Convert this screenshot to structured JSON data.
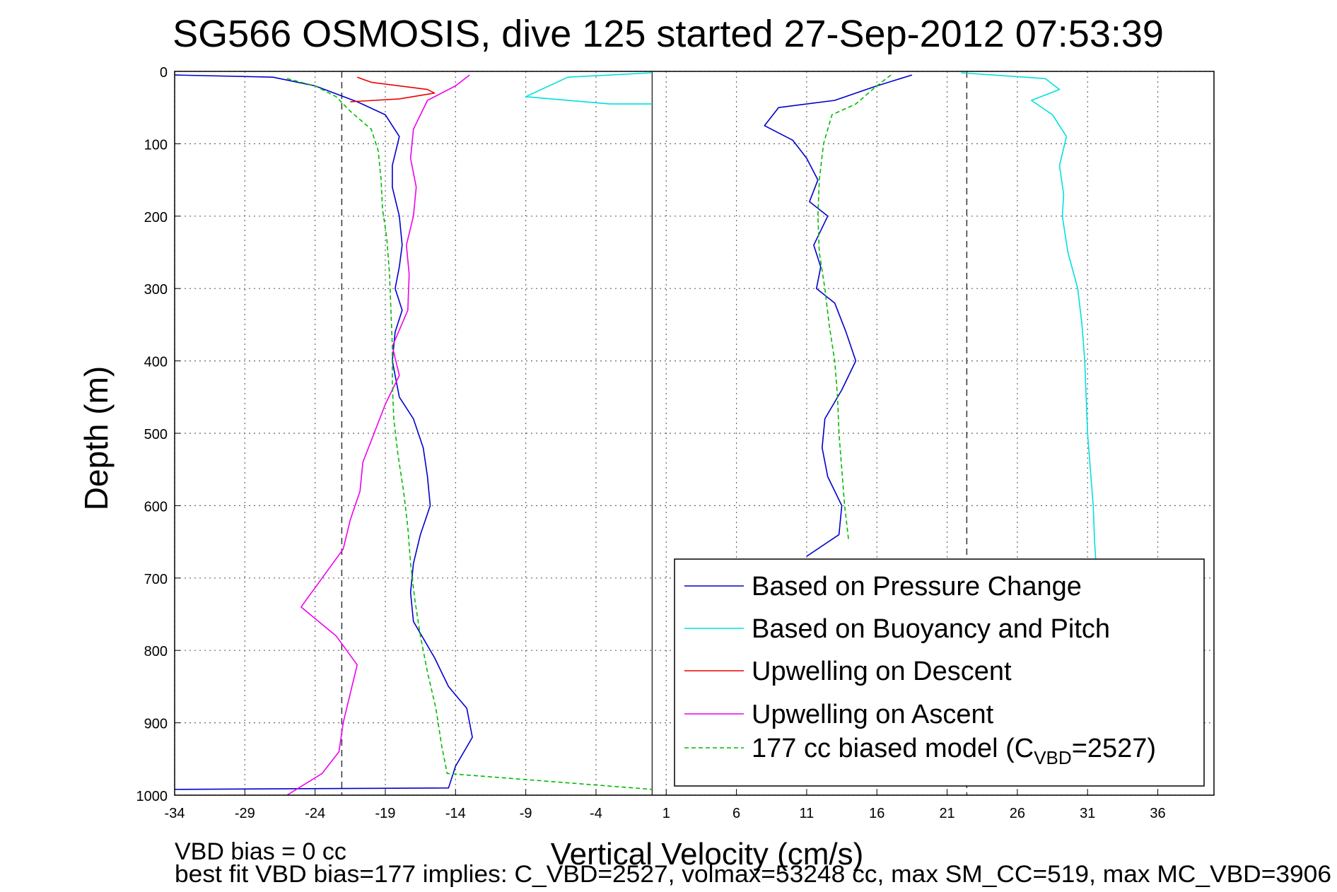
{
  "chart_data": {
    "type": "line",
    "title": "SG566 OSMOSIS, dive 125 started 27-Sep-2012 07:53:39",
    "xlabel": "Vertical Velocity (cm/s)",
    "ylabel": "Depth (m)",
    "xlim": [
      -34,
      40
    ],
    "ylim": [
      0,
      1000
    ],
    "y_reversed": true,
    "grid": true,
    "xticks": [
      -34,
      -29,
      -24,
      -19,
      -14,
      -9,
      -4,
      1,
      6,
      11,
      16,
      21,
      26,
      31,
      36
    ],
    "yticks": [
      0,
      100,
      200,
      300,
      400,
      500,
      600,
      700,
      800,
      900,
      1000
    ],
    "reference_lines": [
      {
        "x": -22.1,
        "style": "dashed",
        "color": "#333333"
      },
      {
        "x": 0,
        "style": "solid",
        "color": "#333333"
      },
      {
        "x": 22.4,
        "style": "dashed",
        "color": "#333333"
      }
    ],
    "legend_position": "bottom-right",
    "legend": [
      {
        "label": "Based on Pressure Change",
        "color": "#0000cc",
        "dash": "solid"
      },
      {
        "label": "Based on Buoyancy and Pitch",
        "color": "#00e0e0",
        "dash": "solid"
      },
      {
        "label": "Upwelling on Descent",
        "color": "#ee0000",
        "dash": "solid"
      },
      {
        "label": "Upwelling on Ascent",
        "color": "#ee00ee",
        "dash": "solid"
      },
      {
        "label_prefix": "177 cc biased model (C",
        "label_sub": "VBD",
        "label_suffix": "=2527)",
        "color": "#00bb00",
        "dash": "dashed"
      }
    ],
    "series": [
      {
        "color": "#0000cc",
        "dash": "solid",
        "points": [
          [
            -34,
            5
          ],
          [
            -27,
            8
          ],
          [
            -24,
            20
          ],
          [
            -21,
            42
          ],
          [
            -19,
            60
          ],
          [
            -18,
            90
          ],
          [
            -18.5,
            130
          ],
          [
            -18.5,
            160
          ],
          [
            -18,
            200
          ],
          [
            -17.8,
            240
          ],
          [
            -18,
            270
          ],
          [
            -18.3,
            300
          ],
          [
            -17.8,
            330
          ],
          [
            -18.3,
            360
          ],
          [
            -18.5,
            400
          ],
          [
            -18,
            450
          ],
          [
            -17,
            480
          ],
          [
            -16.3,
            520
          ],
          [
            -16,
            560
          ],
          [
            -15.8,
            600
          ],
          [
            -16.5,
            640
          ],
          [
            -17,
            680
          ],
          [
            -17.2,
            720
          ],
          [
            -17,
            760
          ],
          [
            -15.5,
            810
          ],
          [
            -14.5,
            850
          ],
          [
            -13.2,
            880
          ],
          [
            -12.8,
            920
          ],
          [
            -14,
            960
          ],
          [
            -14.5,
            990
          ],
          [
            -34,
            992
          ]
        ]
      },
      {
        "color": "#0000cc",
        "dash": "solid",
        "points": [
          [
            18.5,
            5
          ],
          [
            16,
            20
          ],
          [
            13,
            40
          ],
          [
            9,
            50
          ],
          [
            8,
            75
          ],
          [
            10,
            95
          ],
          [
            11,
            120
          ],
          [
            11.8,
            150
          ],
          [
            11.2,
            180
          ],
          [
            12.5,
            200
          ],
          [
            11.5,
            240
          ],
          [
            12,
            270
          ],
          [
            11.7,
            300
          ],
          [
            13,
            320
          ],
          [
            13.8,
            360
          ],
          [
            14.5,
            400
          ],
          [
            13.5,
            440
          ],
          [
            12.3,
            480
          ],
          [
            12.1,
            520
          ],
          [
            12.5,
            560
          ],
          [
            13.5,
            600
          ],
          [
            13.3,
            640
          ],
          [
            11,
            670
          ]
        ]
      },
      {
        "color": "#00e0e0",
        "dash": "solid",
        "points": [
          [
            0,
            2
          ],
          [
            -6,
            8
          ],
          [
            -9,
            35
          ],
          [
            -3,
            45
          ],
          [
            0,
            45
          ]
        ]
      },
      {
        "color": "#00e0e0",
        "dash": "solid",
        "points": [
          [
            22,
            2
          ],
          [
            28,
            10
          ],
          [
            29,
            25
          ],
          [
            27,
            40
          ],
          [
            28.5,
            60
          ],
          [
            29.5,
            90
          ],
          [
            29,
            130
          ],
          [
            29.3,
            170
          ],
          [
            29.2,
            200
          ],
          [
            29.6,
            250
          ],
          [
            30.3,
            300
          ],
          [
            30.6,
            350
          ],
          [
            30.8,
            400
          ],
          [
            30.9,
            450
          ],
          [
            31,
            500
          ],
          [
            31.2,
            550
          ],
          [
            31.4,
            600
          ],
          [
            31.5,
            650
          ],
          [
            31.6,
            680
          ]
        ]
      },
      {
        "color": "#ee0000",
        "dash": "solid",
        "points": [
          [
            -21,
            8
          ],
          [
            -20,
            15
          ],
          [
            -16,
            25
          ],
          [
            -15.5,
            30
          ],
          [
            -18,
            38
          ],
          [
            -21.5,
            42
          ]
        ]
      },
      {
        "color": "#ee00ee",
        "dash": "solid",
        "points": [
          [
            -13,
            5
          ],
          [
            -14,
            20
          ],
          [
            -16,
            40
          ],
          [
            -17,
            80
          ],
          [
            -17.2,
            120
          ],
          [
            -16.8,
            160
          ],
          [
            -17,
            200
          ],
          [
            -17.5,
            240
          ],
          [
            -17.3,
            280
          ],
          [
            -17.4,
            330
          ],
          [
            -18.5,
            380
          ],
          [
            -18,
            420
          ],
          [
            -19,
            460
          ],
          [
            -19.8,
            500
          ],
          [
            -20.6,
            540
          ],
          [
            -20.8,
            580
          ],
          [
            -21.5,
            620
          ],
          [
            -22,
            660
          ],
          [
            -23.5,
            700
          ],
          [
            -25,
            740
          ],
          [
            -22.5,
            780
          ],
          [
            -21,
            820
          ],
          [
            -21.5,
            860
          ],
          [
            -22,
            900
          ],
          [
            -22.3,
            940
          ],
          [
            -23.5,
            970
          ],
          [
            -26,
            1000
          ]
        ]
      },
      {
        "color": "#00bb00",
        "dash": "dashed",
        "points": [
          [
            -26,
            10
          ],
          [
            -24,
            20
          ],
          [
            -22.5,
            35
          ],
          [
            -21.5,
            55
          ],
          [
            -20,
            80
          ],
          [
            -19.5,
            110
          ],
          [
            -19.3,
            150
          ],
          [
            -19.2,
            190
          ],
          [
            -18.9,
            230
          ],
          [
            -18.7,
            280
          ],
          [
            -18.6,
            330
          ],
          [
            -18.5,
            380
          ],
          [
            -18.5,
            430
          ],
          [
            -18.4,
            480
          ],
          [
            -18.1,
            530
          ],
          [
            -17.7,
            580
          ],
          [
            -17.4,
            630
          ],
          [
            -17.2,
            680
          ],
          [
            -16.9,
            730
          ],
          [
            -16.5,
            780
          ],
          [
            -16.0,
            830
          ],
          [
            -15.4,
            880
          ],
          [
            -15.0,
            930
          ],
          [
            -14.6,
            970
          ],
          [
            0,
            992
          ]
        ]
      },
      {
        "color": "#00bb00",
        "dash": "dashed",
        "points": [
          [
            17,
            5
          ],
          [
            16,
            20
          ],
          [
            14.5,
            45
          ],
          [
            12.8,
            60
          ],
          [
            12.2,
            100
          ],
          [
            11.9,
            150
          ],
          [
            11.8,
            200
          ],
          [
            11.9,
            250
          ],
          [
            12.3,
            300
          ],
          [
            12.6,
            350
          ],
          [
            13.0,
            400
          ],
          [
            13.2,
            450
          ],
          [
            13.3,
            500
          ],
          [
            13.5,
            550
          ],
          [
            13.7,
            600
          ],
          [
            14.0,
            650
          ]
        ]
      }
    ]
  },
  "footer": {
    "line1": "VBD bias = 0 cc",
    "line2": "best fit VBD bias=177 implies: C_VBD=2527, volmax=53248 cc, max SM_CC=519, max MC_VBD=3906"
  }
}
